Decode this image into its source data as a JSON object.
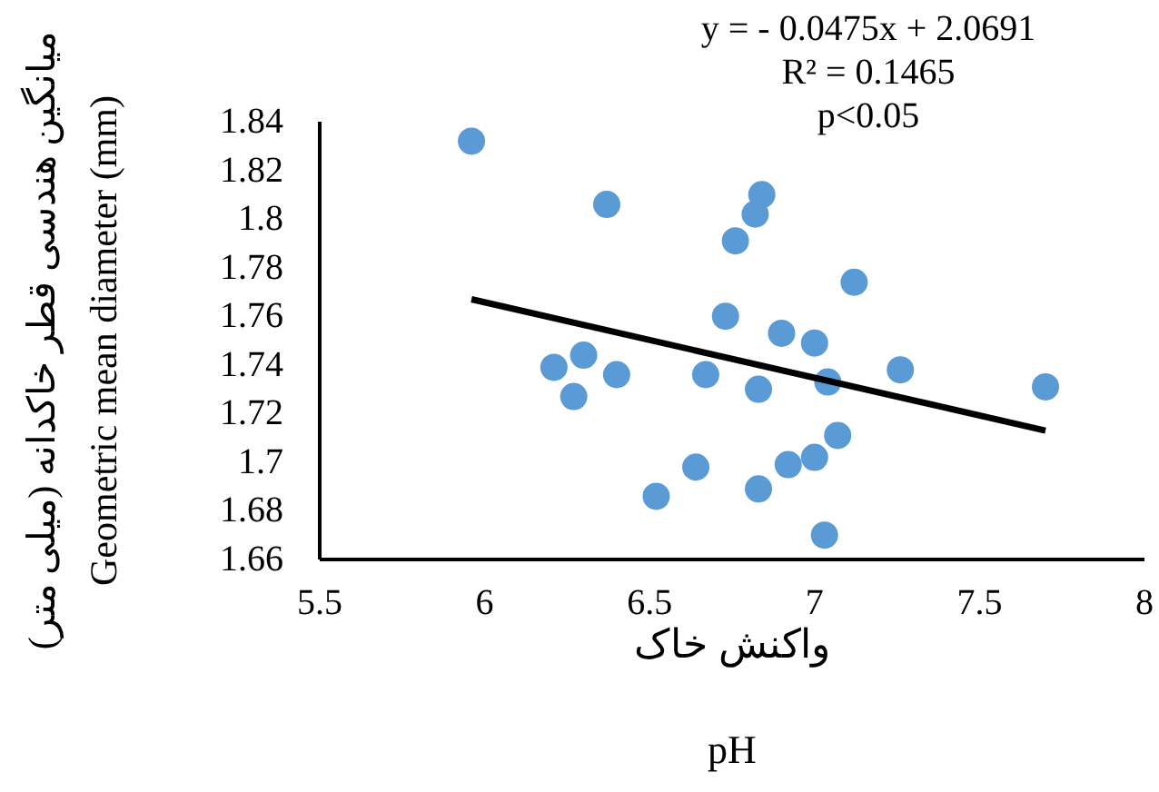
{
  "chart_data": {
    "type": "scatter",
    "xlabel": "واکنش خاک\npH",
    "ylabel": "میانگین هندسی قطر خاکدانه (میلی متر)\nGeometric mean diameter (mm)",
    "annotations": [
      "y = - 0.0475x + 2.0691",
      "R² = 0.1465",
      "p<0.05"
    ],
    "xlim": [
      5.5,
      8
    ],
    "xticks": [
      5.5,
      6,
      6.5,
      7,
      7.5,
      8
    ],
    "ylim": [
      1.66,
      1.84
    ],
    "yticks": [
      1.66,
      1.68,
      1.7,
      1.72,
      1.74,
      1.76,
      1.78,
      1.8,
      1.82,
      1.84
    ],
    "grid": false,
    "marker": "circle",
    "series": [
      {
        "color": "#5b9bd5",
        "x": [
          5.96,
          6.37,
          6.84,
          6.82,
          6.76,
          7.12,
          6.73,
          6.9,
          7.0,
          6.3,
          6.21,
          6.4,
          6.67,
          7.04,
          7.26,
          7.7,
          6.83,
          6.27,
          7.07,
          7.0,
          6.92,
          6.64,
          6.52,
          6.83,
          7.03
        ],
        "values": [
          1.832,
          1.806,
          1.81,
          1.802,
          1.791,
          1.774,
          1.76,
          1.753,
          1.749,
          1.744,
          1.739,
          1.736,
          1.736,
          1.733,
          1.738,
          1.731,
          1.73,
          1.727,
          1.711,
          1.702,
          1.699,
          1.698,
          1.686,
          1.689,
          1.67
        ]
      },
      {
        "type": "line",
        "color": "#000000",
        "line_style": "solid",
        "marker": "none",
        "x": [
          5.96,
          7.7
        ],
        "values": [
          1.767,
          1.713
        ]
      }
    ]
  }
}
